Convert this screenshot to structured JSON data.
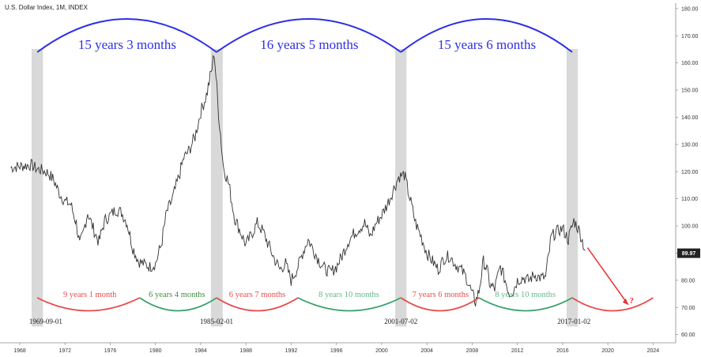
{
  "chart_data": {
    "type": "line",
    "title": "U.S. Dollar Index, 1M, INDEX",
    "colors": {
      "price": "#333333",
      "top_arc": "#2e2ee6",
      "red_arc": "#e84a4a",
      "green_arc": "#3aa36a",
      "green_text": "#3e8e3e",
      "light_green_text": "#62b88a",
      "band": "#d9d9d9",
      "arrow": "#e83030",
      "price_tag_bg": "#222222"
    },
    "x_axis": {
      "min": 1968,
      "max": 2026,
      "ticks": [
        "1968",
        "1972",
        "1976",
        "1980",
        "1984",
        "1988",
        "1992",
        "1996",
        "2000",
        "2004",
        "2008",
        "2012",
        "2016",
        "2020",
        "2024"
      ]
    },
    "y_axis": {
      "min": 57,
      "max": 182,
      "ticks": [
        "60.00",
        "70.00",
        "80.00",
        "90.00",
        "100.00",
        "110.00",
        "120.00",
        "130.00",
        "140.00",
        "150.00",
        "160.00",
        "170.00",
        "180.00"
      ],
      "last_price": "89.97"
    },
    "series": [
      {
        "x": [
          1967.2,
          1969.0,
          1969.5,
          1970.0,
          1970.5,
          1971.0,
          1971.5,
          1972.0,
          1972.5,
          1973.0,
          1973.3,
          1973.6,
          1974.0,
          1974.5,
          1975.0,
          1975.5,
          1976.0,
          1976.5,
          1977.0,
          1977.5,
          1978.0,
          1978.5,
          1979.0,
          1979.5,
          1980.0,
          1980.5,
          1981.0,
          1981.5,
          1982.0,
          1982.5,
          1983.0,
          1983.5,
          1984.0,
          1984.5,
          1985.0,
          1985.2,
          1985.5,
          1986.0,
          1986.5,
          1987.0,
          1987.5,
          1988.0,
          1988.5,
          1989.0,
          1989.5,
          1990.0,
          1990.5,
          1991.0,
          1991.5,
          1992.0,
          1992.6,
          1993.0,
          1993.5,
          1994.0,
          1994.5,
          1995.0,
          1995.5,
          1996.0,
          1996.5,
          1997.0,
          1997.5,
          1998.0,
          1998.5,
          1999.0,
          1999.5,
          2000.0,
          2000.5,
          2001.0,
          2001.5,
          2002.0,
          2002.5,
          2003.0,
          2003.5,
          2004.0,
          2004.5,
          2005.0,
          2005.5,
          2006.0,
          2006.5,
          2007.0,
          2007.5,
          2008.0,
          2008.3,
          2008.6,
          2009.0,
          2009.3,
          2009.6,
          2010.0,
          2010.5,
          2011.0,
          2011.3,
          2011.6,
          2012.0,
          2012.5,
          2013.0,
          2013.5,
          2014.0,
          2014.5,
          2015.0,
          2015.5,
          2016.0,
          2016.5,
          2017.0,
          2017.5,
          2018.0
        ],
        "y": [
          121.5,
          122.5,
          121.0,
          120.5,
          119.5,
          117.0,
          112.0,
          109.0,
          108.0,
          101.0,
          93.0,
          97.0,
          105.0,
          99.0,
          94.0,
          102.0,
          104.0,
          106.0,
          105.0,
          101.0,
          92.0,
          87.0,
          86.0,
          85.0,
          86.0,
          93.0,
          105.0,
          110.0,
          117.0,
          125.0,
          128.0,
          133.0,
          142.0,
          148.0,
          158.0,
          164.0,
          146.0,
          122.0,
          115.0,
          103.0,
          98.0,
          93.0,
          97.0,
          101.0,
          98.0,
          93.0,
          88.0,
          84.0,
          86.0,
          80.0,
          85.0,
          90.0,
          95.0,
          91.0,
          87.0,
          84.0,
          83.0,
          85.0,
          89.0,
          94.0,
          97.0,
          99.0,
          101.0,
          96.0,
          101.0,
          104.0,
          108.0,
          113.0,
          118.0,
          119.0,
          110.0,
          101.0,
          96.0,
          90.0,
          87.0,
          84.0,
          88.0,
          89.0,
          86.0,
          84.0,
          81.0,
          75.0,
          72.0,
          76.0,
          87.0,
          84.0,
          78.0,
          77.0,
          85.0,
          79.0,
          75.0,
          76.0,
          80.0,
          81.0,
          80.0,
          82.0,
          81.0,
          81.0,
          96.0,
          98.0,
          99.0,
          95.0,
          102.0,
          98.0,
          91.0
        ]
      }
    ],
    "annotations": {
      "top_cycles": [
        "15 years 3 months",
        "16 years 5 months",
        "15 years 6 months"
      ],
      "bottom_cycles": [
        "9 years 1 month",
        "6 years 4 months",
        "6 years 7 months",
        "8 years 10 months",
        "7 years 6 months",
        "8 years 10 months"
      ],
      "dates": [
        "1969-09-01",
        "1985-02-01",
        "2001-07-02",
        "2017-01-02"
      ],
      "question": "?"
    }
  }
}
